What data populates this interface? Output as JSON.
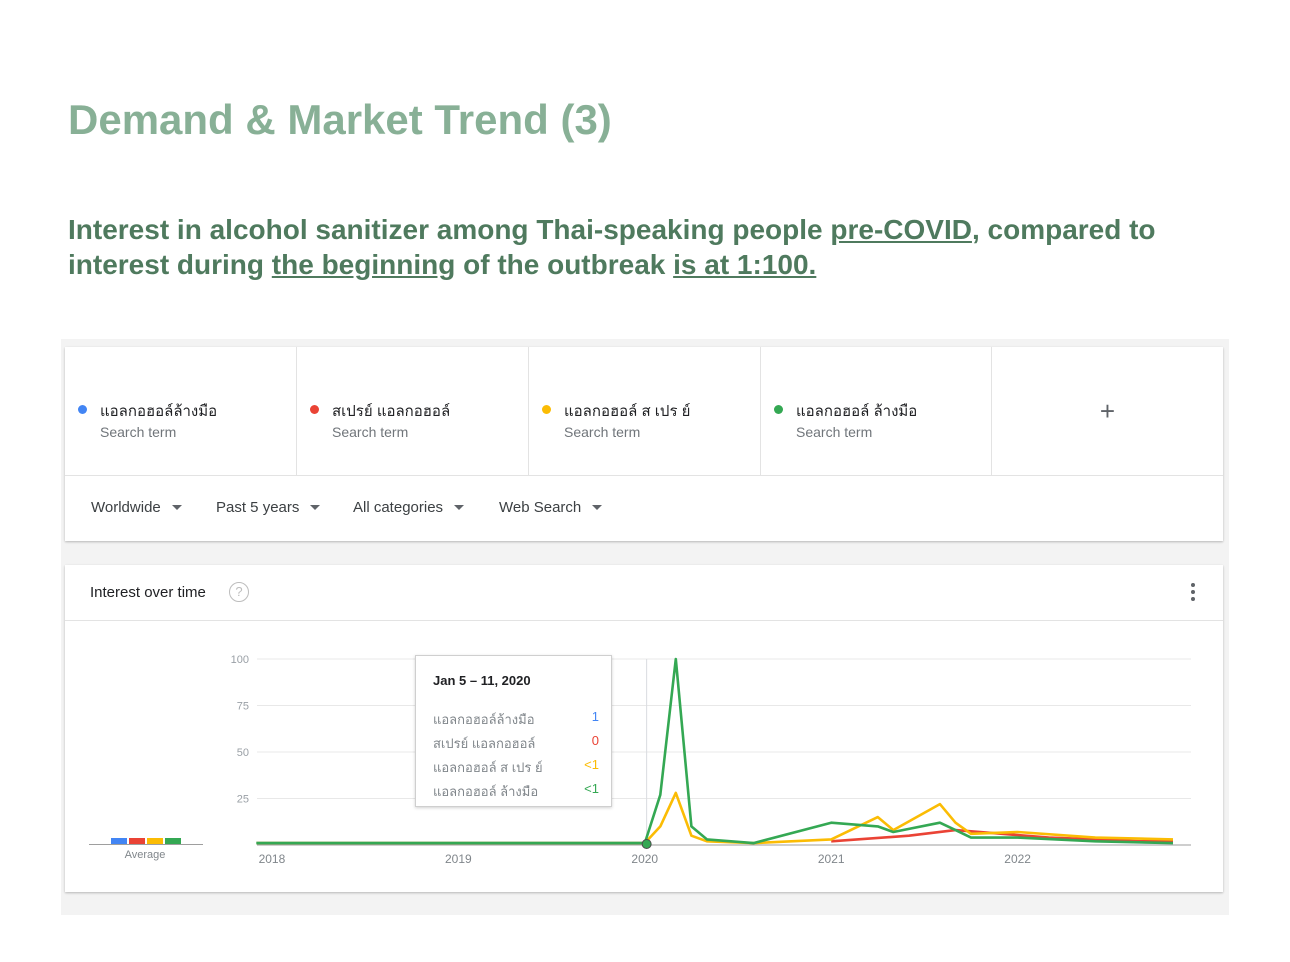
{
  "title": "Demand & Market Trend (3)",
  "subtitle": {
    "p1": "Interest in alcohol sanitizer among Thai-speaking people ",
    "u1": "pre-COVID",
    "p2": ", compared to interest during ",
    "u2": "the beginning",
    "p3": " of the outbreak ",
    "u3": "is at 1:100."
  },
  "search_terms": [
    {
      "name": "แอลกอฮอล์ล้างมือ",
      "sub": "Search term",
      "color": "#4285f4"
    },
    {
      "name": "สเปรย์ แอลกอฮอล์",
      "sub": "Search term",
      "color": "#ea4335"
    },
    {
      "name": "แอลกอฮอล์ ส เปร ย์",
      "sub": "Search term",
      "color": "#fbbc04"
    },
    {
      "name": "แอลกอฮอล์ ล้างมือ",
      "sub": "Search term",
      "color": "#34a853"
    }
  ],
  "add_term_icon": "+",
  "filters": {
    "region": "Worldwide",
    "time": "Past 5 years",
    "category": "All categories",
    "search_type": "Web Search"
  },
  "interest_over_time": {
    "title": "Interest over time",
    "help_icon": "?",
    "average_label": "Average"
  },
  "tooltip": {
    "date": "Jan 5 – 11, 2020",
    "rows": [
      {
        "name": "แอลกอฮอล์ล้างมือ",
        "value": "1",
        "color": "#4285f4"
      },
      {
        "name": "สเปรย์ แอลกอฮอล์",
        "value": "0",
        "color": "#ea4335"
      },
      {
        "name": "แอลกอฮอล์ ส เปร ย์",
        "value": "<1",
        "color": "#fbbc04"
      },
      {
        "name": "แอลกอฮอล์ ล้างมือ",
        "value": "<1",
        "color": "#34a853"
      }
    ]
  },
  "chart_data": {
    "type": "line",
    "ylim": [
      0,
      100
    ],
    "y_ticks": [
      "100",
      "75",
      "50",
      "25"
    ],
    "x_ticks": [
      "2018",
      "2019",
      "2020",
      "2021",
      "2022"
    ],
    "grid": true,
    "averages": [
      {
        "name": "แอลกอฮอล์ล้างมือ",
        "value": 2,
        "color": "#4285f4"
      },
      {
        "name": "สเปรย์ แอลกอฮอล์",
        "value": 2,
        "color": "#ea4335"
      },
      {
        "name": "แอลกอฮอล์ ส เปร ย์",
        "value": 2,
        "color": "#fbbc04"
      },
      {
        "name": "แอลกอฮอล์ ล้างมือ",
        "value": 2,
        "color": "#34a853"
      }
    ],
    "series": [
      {
        "name": "แอลกอฮอล์ล้างมือ",
        "color": "#4285f4",
        "x": [
          "2017-12",
          "2018-06",
          "2019-01",
          "2019-06",
          "2019-12",
          "2020-01"
        ],
        "values": [
          1,
          1,
          1,
          1,
          1,
          1
        ]
      },
      {
        "name": "สเปรย์ แอลกอฮอล์",
        "color": "#ea4335",
        "x": [
          "2021-01",
          "2021-06",
          "2021-09",
          "2021-12",
          "2022-03",
          "2022-06",
          "2022-09",
          "2022-11"
        ],
        "values": [
          2,
          5,
          8,
          6,
          4,
          3,
          2,
          2
        ]
      },
      {
        "name": "แอลกอฮอล์ ส เปร ย์",
        "color": "#fbbc04",
        "x": [
          "2017-12",
          "2019-06",
          "2020-01",
          "2020-02",
          "2020-03",
          "2020-04",
          "2020-05",
          "2020-08",
          "2021-01",
          "2021-04",
          "2021-05",
          "2021-08",
          "2021-09",
          "2021-10",
          "2022-01",
          "2022-06",
          "2022-11"
        ],
        "values": [
          1,
          1,
          1,
          10,
          28,
          5,
          2,
          1,
          3,
          15,
          8,
          22,
          12,
          6,
          7,
          4,
          3
        ]
      },
      {
        "name": "แอลกอฮอล์ ล้างมือ",
        "color": "#34a853",
        "x": [
          "2017-12",
          "2019-06",
          "2020-01",
          "2020-02",
          "2020-03",
          "2020-04",
          "2020-05",
          "2020-08",
          "2021-01",
          "2021-04",
          "2021-05",
          "2021-08",
          "2021-09",
          "2021-10",
          "2022-01",
          "2022-06",
          "2022-11"
        ],
        "values": [
          1,
          1,
          1,
          27,
          100,
          10,
          3,
          1,
          12,
          10,
          7,
          12,
          8,
          4,
          4,
          2,
          1
        ]
      }
    ]
  }
}
